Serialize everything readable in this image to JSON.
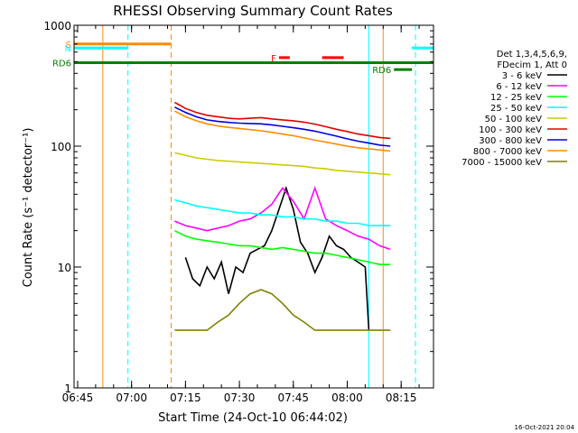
{
  "chart_data": {
    "type": "line",
    "title": "RHESSI Observing Summary Count Rates",
    "xlabel": "Start Time (24-Oct-10 06:44:02)",
    "ylabel": "Count Rate (s⁻¹ detector⁻¹)",
    "y_scale": "log",
    "ylim": [
      1,
      1000
    ],
    "xlim": [
      "06:44",
      "08:24"
    ],
    "x_ticks": [
      "06:45",
      "07:00",
      "07:15",
      "07:30",
      "07:45",
      "08:00",
      "08:15"
    ],
    "y_ticks": [
      "1",
      "10",
      "100",
      "1000"
    ],
    "legend": {
      "position": "right",
      "header": [
        "Det 1,3,4,5,6,9,",
        "FDecim 1, Att 0"
      ],
      "entries": [
        {
          "label": "3 - 6 keV",
          "color": "#000000"
        },
        {
          "label": "6 - 12 keV",
          "color": "#ff00ff"
        },
        {
          "label": "12 - 25 keV",
          "color": "#00ff00"
        },
        {
          "label": "25 - 50 keV",
          "color": "#00ffff"
        },
        {
          "label": "50 - 100 keV",
          "color": "#cccc00"
        },
        {
          "label": "100 - 300 keV",
          "color": "#e00000"
        },
        {
          "label": "300 - 800 keV",
          "color": "#0000e0"
        },
        {
          "label": "800 - 7000 keV",
          "color": "#ff8c00"
        },
        {
          "label": "7000 - 15000 keV",
          "color": "#808000"
        }
      ]
    },
    "series": [
      {
        "name": "3 - 6 keV",
        "color": "#000000",
        "x": [
          "07:15",
          "07:17",
          "07:19",
          "07:21",
          "07:23",
          "07:25",
          "07:27",
          "07:29",
          "07:31",
          "07:33",
          "07:35",
          "07:37",
          "07:39",
          "07:41",
          "07:43",
          "07:45",
          "07:47",
          "07:49",
          "07:51",
          "07:53",
          "07:55",
          "07:57",
          "07:59",
          "08:01",
          "08:03",
          "08:05",
          "08:06"
        ],
        "values": [
          12,
          8,
          7,
          10,
          8,
          11,
          6,
          10,
          9,
          13,
          14,
          15,
          20,
          30,
          45,
          30,
          16,
          13,
          9,
          12,
          18,
          15,
          14,
          12,
          11,
          10,
          3
        ]
      },
      {
        "name": "6 - 12 keV",
        "color": "#ff00ff",
        "x": [
          "07:12",
          "07:15",
          "07:18",
          "07:21",
          "07:24",
          "07:27",
          "07:30",
          "07:33",
          "07:36",
          "07:39",
          "07:42",
          "07:45",
          "07:48",
          "07:51",
          "07:54",
          "07:57",
          "08:00",
          "08:03",
          "08:06",
          "08:09",
          "08:12"
        ],
        "values": [
          24,
          22,
          21,
          20,
          21,
          22,
          24,
          25,
          28,
          33,
          45,
          35,
          25,
          45,
          25,
          22,
          20,
          18,
          17,
          15,
          14
        ]
      },
      {
        "name": "12 - 25 keV",
        "color": "#00ff00",
        "x": [
          "07:12",
          "07:15",
          "07:18",
          "07:21",
          "07:24",
          "07:27",
          "07:30",
          "07:33",
          "07:36",
          "07:39",
          "07:42",
          "07:45",
          "07:48",
          "07:51",
          "07:54",
          "07:57",
          "08:00",
          "08:03",
          "08:06",
          "08:09",
          "08:12"
        ],
        "values": [
          20,
          18,
          17,
          16.5,
          16,
          15.5,
          15,
          15,
          14.5,
          14,
          14.5,
          14,
          13.5,
          13,
          13,
          12.5,
          12,
          11.5,
          11,
          10.5,
          10.5
        ]
      },
      {
        "name": "25 - 50 keV",
        "color": "#00ffff",
        "x": [
          "07:12",
          "07:15",
          "07:18",
          "07:21",
          "07:24",
          "07:27",
          "07:30",
          "07:33",
          "07:36",
          "07:39",
          "07:42",
          "07:45",
          "07:48",
          "07:51",
          "07:54",
          "07:57",
          "08:00",
          "08:03",
          "08:06",
          "08:09",
          "08:12"
        ],
        "values": [
          36,
          34,
          32,
          31,
          30,
          29,
          28,
          28,
          27,
          27,
          26,
          26,
          25,
          25,
          24,
          24,
          23,
          23,
          22,
          22,
          22
        ]
      },
      {
        "name": "50 - 100 keV",
        "color": "#cccc00",
        "x": [
          "07:12",
          "07:15",
          "07:18",
          "07:21",
          "07:24",
          "07:27",
          "07:30",
          "07:33",
          "07:36",
          "07:39",
          "07:42",
          "07:45",
          "07:48",
          "07:51",
          "07:54",
          "07:57",
          "08:00",
          "08:03",
          "08:06",
          "08:09",
          "08:12"
        ],
        "values": [
          88,
          84,
          80,
          78,
          76,
          75,
          74,
          73,
          72,
          71,
          70,
          69,
          68,
          66,
          65,
          63,
          62,
          61,
          60,
          59,
          58
        ]
      },
      {
        "name": "100 - 300 keV",
        "color": "#e00000",
        "x": [
          "07:12",
          "07:15",
          "07:18",
          "07:21",
          "07:24",
          "07:27",
          "07:30",
          "07:33",
          "07:36",
          "07:39",
          "07:42",
          "07:45",
          "07:48",
          "07:51",
          "07:54",
          "07:57",
          "08:00",
          "08:03",
          "08:06",
          "08:09",
          "08:12"
        ],
        "values": [
          230,
          205,
          190,
          180,
          175,
          170,
          168,
          170,
          172,
          168,
          165,
          162,
          158,
          152,
          145,
          138,
          132,
          126,
          122,
          118,
          116
        ]
      },
      {
        "name": "300 - 800 keV",
        "color": "#0000e0",
        "x": [
          "07:12",
          "07:15",
          "07:18",
          "07:21",
          "07:24",
          "07:27",
          "07:30",
          "07:33",
          "07:36",
          "07:39",
          "07:42",
          "07:45",
          "07:48",
          "07:51",
          "07:54",
          "07:57",
          "08:00",
          "08:03",
          "08:06",
          "08:09",
          "08:12"
        ],
        "values": [
          210,
          190,
          175,
          165,
          160,
          157,
          155,
          154,
          153,
          150,
          146,
          142,
          138,
          133,
          127,
          121,
          115,
          110,
          106,
          102,
          100
        ]
      },
      {
        "name": "800 - 7000 keV",
        "color": "#ff8c00",
        "x": [
          "07:12",
          "07:15",
          "07:18",
          "07:21",
          "07:24",
          "07:27",
          "07:30",
          "07:33",
          "07:36",
          "07:39",
          "07:42",
          "07:45",
          "07:48",
          "07:51",
          "07:54",
          "07:57",
          "08:00",
          "08:03",
          "08:06",
          "08:09",
          "08:12"
        ],
        "values": [
          195,
          175,
          162,
          153,
          147,
          143,
          140,
          137,
          134,
          130,
          126,
          122,
          117,
          112,
          108,
          104,
          100,
          97,
          95,
          93,
          91
        ]
      },
      {
        "name": "7000 - 15000 keV",
        "color": "#808000",
        "x": [
          "07:12",
          "07:15",
          "07:18",
          "07:21",
          "07:24",
          "07:27",
          "07:30",
          "07:33",
          "07:36",
          "07:39",
          "07:42",
          "07:45",
          "07:48",
          "07:51",
          "07:54",
          "07:57",
          "08:00",
          "08:03",
          "08:06",
          "08:09",
          "08:12"
        ],
        "values": [
          3,
          3,
          3,
          3,
          3.5,
          4,
          5,
          6,
          6.5,
          6,
          5,
          4,
          3.5,
          3,
          3,
          3,
          3,
          3,
          3,
          3,
          3
        ]
      }
    ],
    "annotations": [
      {
        "label": "S",
        "color": "#ff8c00",
        "kind": "bar",
        "x_start": "06:44",
        "x_end": "07:11",
        "value": 700
      },
      {
        "label": "N",
        "color": "#00ffff",
        "kind": "bar",
        "x_start": "06:44",
        "x_end": "06:59",
        "value": 650
      },
      {
        "label": "F",
        "color": "#ff0000",
        "kind": "bar",
        "x_start": "07:41",
        "x_end": "07:44",
        "value": 540
      },
      {
        "label": "",
        "color": "#ff0000",
        "kind": "bar",
        "x_start": "07:53",
        "x_end": "07:59",
        "value": 540
      },
      {
        "label": "RD6",
        "color": "#008000",
        "kind": "bar",
        "x_start": "06:44",
        "x_end": "08:24",
        "value": 490
      },
      {
        "label": "RD6",
        "color": "#008000",
        "kind": "bar",
        "x_start": "08:13",
        "x_end": "08:18",
        "value": 430
      },
      {
        "label": "",
        "color": "#00ffff",
        "kind": "bar",
        "x_start": "08:18",
        "x_end": "08:24",
        "value": 650
      }
    ],
    "vlines": [
      {
        "x": "06:44",
        "color": "#00ffff",
        "style": "solid"
      },
      {
        "x": "06:52",
        "color": "#ff8c00",
        "style": "solid"
      },
      {
        "x": "06:59",
        "color": "#00ffff",
        "style": "dashed"
      },
      {
        "x": "07:11",
        "color": "#ff8c00",
        "style": "dashed"
      },
      {
        "x": "08:06",
        "color": "#00ffff",
        "style": "solid"
      },
      {
        "x": "08:10",
        "color": "#ff8c00",
        "style": "solid"
      },
      {
        "x": "08:19",
        "color": "#00ffff",
        "style": "dashed"
      }
    ]
  },
  "timestamp": "16-Oct-2021 20:04"
}
